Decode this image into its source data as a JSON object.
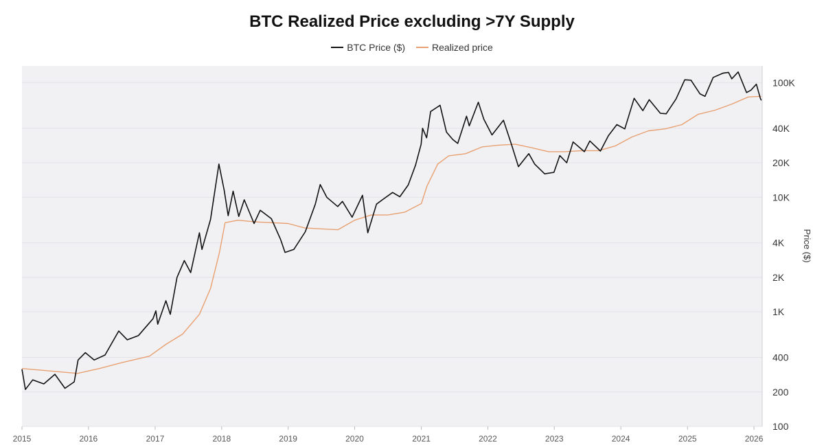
{
  "chart_data": {
    "type": "line",
    "title": "BTC Realized Price excluding >7Y Supply",
    "xlabel": "",
    "ylabel": "Price ($)",
    "yscale": "log",
    "ylim": [
      100,
      140000
    ],
    "xlim": [
      "2015-01-01",
      "2026-02-15"
    ],
    "grid": true,
    "legend_position": "top-center",
    "x_ticks": [
      "2015",
      "2016",
      "2017",
      "2018",
      "2019",
      "2020",
      "2021",
      "2022",
      "2023",
      "2024",
      "2025",
      "2026"
    ],
    "y_ticks": [
      {
        "value": 100,
        "label": "100"
      },
      {
        "value": 200,
        "label": "200"
      },
      {
        "value": 400,
        "label": "400"
      },
      {
        "value": 1000,
        "label": "1K"
      },
      {
        "value": 2000,
        "label": "2K"
      },
      {
        "value": 4000,
        "label": "4K"
      },
      {
        "value": 10000,
        "label": "10K"
      },
      {
        "value": 20000,
        "label": "20K"
      },
      {
        "value": 40000,
        "label": "40K"
      },
      {
        "value": 100000,
        "label": "100K"
      }
    ],
    "series": [
      {
        "name": "BTC Price ($)",
        "color": "#111111",
        "x": [
          "2015-01-01",
          "2015-01-20",
          "2015-03-01",
          "2015-05-01",
          "2015-07-01",
          "2015-08-25",
          "2015-10-15",
          "2015-11-05",
          "2015-12-15",
          "2016-02-01",
          "2016-04-01",
          "2016-06-15",
          "2016-08-01",
          "2016-10-01",
          "2016-12-20",
          "2017-01-05",
          "2017-01-15",
          "2017-03-01",
          "2017-03-25",
          "2017-05-01",
          "2017-06-10",
          "2017-07-15",
          "2017-09-01",
          "2017-09-15",
          "2017-11-01",
          "2017-12-17",
          "2018-01-15",
          "2018-02-06",
          "2018-03-05",
          "2018-04-05",
          "2018-05-05",
          "2018-06-28",
          "2018-08-01",
          "2018-10-01",
          "2018-11-20",
          "2018-12-15",
          "2019-02-01",
          "2019-04-05",
          "2019-05-30",
          "2019-06-26",
          "2019-08-01",
          "2019-09-30",
          "2019-10-26",
          "2019-12-18",
          "2020-02-13",
          "2020-03-13",
          "2020-04-30",
          "2020-06-01",
          "2020-07-27",
          "2020-09-05",
          "2020-10-21",
          "2020-11-30",
          "2020-12-31",
          "2021-01-08",
          "2021-01-30",
          "2021-02-21",
          "2021-04-14",
          "2021-05-19",
          "2021-06-22",
          "2021-07-20",
          "2021-09-06",
          "2021-09-21",
          "2021-11-10",
          "2021-12-10",
          "2022-01-24",
          "2022-03-28",
          "2022-05-12",
          "2022-06-18",
          "2022-08-14",
          "2022-09-15",
          "2022-11-09",
          "2022-12-30",
          "2023-01-31",
          "2023-03-10",
          "2023-04-14",
          "2023-06-15",
          "2023-07-15",
          "2023-09-11",
          "2023-10-25",
          "2023-12-10",
          "2024-01-23",
          "2024-03-14",
          "2024-05-01",
          "2024-06-05",
          "2024-08-05",
          "2024-09-06",
          "2024-10-30",
          "2024-12-17",
          "2025-01-20",
          "2025-03-10",
          "2025-04-07",
          "2025-05-22",
          "2025-07-14",
          "2025-08-14",
          "2025-09-01",
          "2025-10-06",
          "2025-11-21",
          "2025-12-15",
          "2026-01-14",
          "2026-02-05",
          "2026-02-10"
        ],
        "y": [
          315,
          210,
          255,
          235,
          285,
          215,
          245,
          380,
          440,
          380,
          420,
          680,
          570,
          620,
          870,
          1020,
          780,
          1250,
          950,
          2000,
          2800,
          2200,
          4900,
          3500,
          6400,
          19500,
          11500,
          6900,
          11300,
          6800,
          9500,
          5900,
          7700,
          6500,
          4300,
          3300,
          3500,
          5000,
          8700,
          12900,
          10000,
          8300,
          9200,
          6700,
          10400,
          4900,
          8700,
          9500,
          11000,
          10100,
          12800,
          19000,
          29000,
          40000,
          33000,
          56000,
          63500,
          37000,
          32000,
          29500,
          51000,
          42000,
          67500,
          48000,
          35000,
          47000,
          28500,
          18500,
          24000,
          19500,
          16000,
          16500,
          23100,
          20000,
          30400,
          25000,
          31000,
          25300,
          34500,
          43000,
          39500,
          73000,
          57000,
          71000,
          54000,
          53500,
          72000,
          106000,
          105000,
          80000,
          76000,
          111000,
          121000,
          123000,
          108000,
          124000,
          82000,
          86000,
          97000,
          73000,
          70000
        ]
      },
      {
        "name": "Realized price",
        "color": "#e8a070",
        "x": [
          "2015-01-01",
          "2015-06-01",
          "2015-11-01",
          "2016-03-01",
          "2016-07-01",
          "2016-12-01",
          "2017-03-01",
          "2017-06-01",
          "2017-09-01",
          "2017-11-01",
          "2017-12-20",
          "2018-01-20",
          "2018-04-01",
          "2018-07-01",
          "2018-10-01",
          "2019-01-01",
          "2019-04-01",
          "2019-07-01",
          "2019-10-01",
          "2020-01-01",
          "2020-04-01",
          "2020-07-01",
          "2020-10-01",
          "2021-01-01",
          "2021-02-01",
          "2021-04-01",
          "2021-06-01",
          "2021-09-01",
          "2021-12-01",
          "2022-03-01",
          "2022-06-01",
          "2022-09-01",
          "2022-12-01",
          "2023-03-01",
          "2023-06-01",
          "2023-09-01",
          "2023-12-01",
          "2024-03-01",
          "2024-06-01",
          "2024-09-01",
          "2024-12-01",
          "2025-03-01",
          "2025-06-01",
          "2025-09-01",
          "2025-12-01",
          "2026-02-10"
        ],
        "y": [
          320,
          305,
          290,
          320,
          360,
          410,
          520,
          640,
          950,
          1600,
          3300,
          6000,
          6300,
          6100,
          6000,
          5900,
          5400,
          5300,
          5200,
          6300,
          7000,
          7000,
          7400,
          8800,
          12500,
          19500,
          23000,
          24000,
          27500,
          28500,
          29000,
          27000,
          25000,
          25000,
          25500,
          25500,
          28000,
          33500,
          38000,
          39500,
          43000,
          53000,
          57500,
          65000,
          75000,
          76000
        ]
      }
    ]
  }
}
